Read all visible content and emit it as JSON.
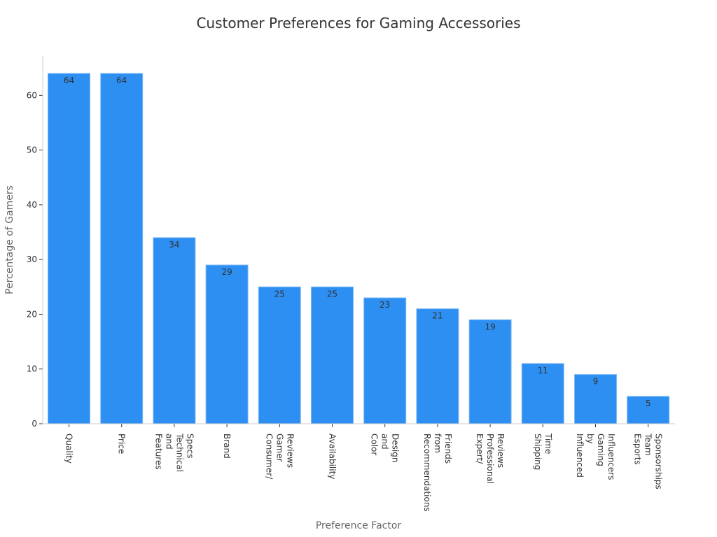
{
  "chart_data": {
    "type": "bar",
    "title": "Customer Preferences for Gaming Accessories",
    "xlabel": "Preference Factor",
    "ylabel": "Percentage of Gamers",
    "ylim": [
      0,
      67.2
    ],
    "yticks": [
      0,
      10,
      20,
      30,
      40,
      50,
      60
    ],
    "grid": false,
    "bar_color": "#2d8ff2",
    "categories": [
      [
        "Quality"
      ],
      [
        "Price"
      ],
      [
        "Features",
        "and",
        "Technical",
        "Specs"
      ],
      [
        "Brand"
      ],
      [
        "Consumer/",
        "Gamer",
        "Reviews"
      ],
      [
        "Availability"
      ],
      [
        "Color",
        "and",
        "Design"
      ],
      [
        "Recommendations",
        "from",
        "Friends"
      ],
      [
        "Expert/",
        "Professional",
        "Reviews"
      ],
      [
        "Shipping",
        "Time"
      ],
      [
        "Influenced",
        "by",
        "Gaming",
        "Influencers"
      ],
      [
        "Esports",
        "Team",
        "Sponsorships"
      ]
    ],
    "values": [
      64,
      64,
      34,
      29,
      25,
      25,
      23,
      21,
      19,
      11,
      9,
      5
    ],
    "data_labels": [
      "64",
      "64",
      "34",
      "29",
      "25",
      "25",
      "23",
      "21",
      "19",
      "11",
      "9",
      "5"
    ]
  }
}
